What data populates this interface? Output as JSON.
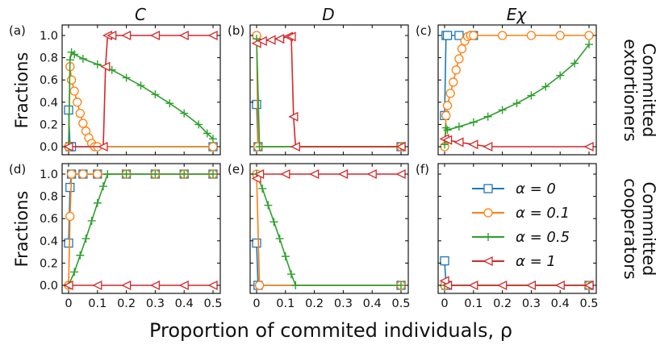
{
  "figure": {
    "xlabel": "Proportion of commited individuals, ρ",
    "ylabel": "Fractions",
    "columns": [
      "C",
      "D",
      "Eχ"
    ],
    "rows": [
      "Committed extortioners",
      "Committed cooperators"
    ],
    "row_lines": [
      [
        "Committed",
        "extortioners"
      ],
      [
        "Committed",
        "cooperators"
      ]
    ],
    "panel_labels": [
      "(a)",
      "(b)",
      "(c)",
      "(d)",
      "(e)",
      "(f)"
    ],
    "xticks": [
      "0",
      "0.1",
      "0.2",
      "0.3",
      "0.4",
      "0.5"
    ],
    "yticks": [
      "0.0",
      "0.2",
      "0.4",
      "0.6",
      "0.8",
      "1.0"
    ],
    "legend": [
      "α = 0",
      "α = 0.1",
      "α = 0.5",
      "α = 1"
    ],
    "colors": [
      "#1f77b4",
      "#ff7f0e",
      "#2ca02c",
      "#d62728"
    ],
    "markers": [
      "square",
      "circle",
      "plus",
      "triangle-left"
    ]
  },
  "chart_data": [
    {
      "type": "line",
      "panel": "(a)",
      "title": "C",
      "row": "Committed extortioners",
      "xlabel": "",
      "ylabel": "Fractions",
      "xlim": [
        0,
        0.5
      ],
      "ylim": [
        0,
        1
      ],
      "series": [
        {
          "name": "α = 0",
          "points": [
            [
              0,
              0.33
            ],
            [
              0.005,
              0.0
            ],
            [
              0.01,
              0.0
            ],
            [
              0.5,
              0.0
            ]
          ]
        },
        {
          "name": "α = 0.1",
          "points": [
            [
              0,
              0.0
            ],
            [
              0.005,
              0.72
            ],
            [
              0.01,
              0.6
            ],
            [
              0.02,
              0.5
            ],
            [
              0.03,
              0.4
            ],
            [
              0.04,
              0.3
            ],
            [
              0.05,
              0.21
            ],
            [
              0.06,
              0.14
            ],
            [
              0.07,
              0.08
            ],
            [
              0.08,
              0.03
            ],
            [
              0.09,
              0.0
            ],
            [
              0.1,
              0.0
            ],
            [
              0.5,
              0.0
            ]
          ]
        },
        {
          "name": "α = 0.5",
          "points": [
            [
              0,
              0.0
            ],
            [
              0.005,
              0.78
            ],
            [
              0.01,
              0.85
            ],
            [
              0.02,
              0.83
            ],
            [
              0.05,
              0.79
            ],
            [
              0.1,
              0.74
            ],
            [
              0.15,
              0.69
            ],
            [
              0.2,
              0.62
            ],
            [
              0.25,
              0.55
            ],
            [
              0.3,
              0.47
            ],
            [
              0.35,
              0.39
            ],
            [
              0.4,
              0.3
            ],
            [
              0.45,
              0.2
            ],
            [
              0.48,
              0.12
            ],
            [
              0.5,
              0.07
            ]
          ]
        },
        {
          "name": "α = 1",
          "points": [
            [
              0,
              0.0
            ],
            [
              0.12,
              0.0
            ],
            [
              0.128,
              0.72
            ],
            [
              0.135,
              1.0
            ],
            [
              0.15,
              1.0
            ],
            [
              0.2,
              1.0
            ],
            [
              0.3,
              1.0
            ],
            [
              0.4,
              1.0
            ],
            [
              0.5,
              1.0
            ]
          ]
        }
      ]
    },
    {
      "type": "line",
      "panel": "(b)",
      "title": "D",
      "row": "Committed extortioners",
      "xlabel": "",
      "ylabel": "",
      "xlim": [
        0,
        0.5
      ],
      "ylim": [
        0,
        1
      ],
      "series": [
        {
          "name": "α = 0",
          "points": [
            [
              0,
              0.38
            ],
            [
              0.005,
              0.0
            ],
            [
              0.5,
              0.0
            ]
          ]
        },
        {
          "name": "α = 0.1",
          "points": [
            [
              0,
              1.0
            ],
            [
              0.005,
              0.0
            ],
            [
              0.5,
              0.0
            ]
          ]
        },
        {
          "name": "α = 0.5",
          "points": [
            [
              0,
              0.97
            ],
            [
              0.01,
              0.0
            ],
            [
              0.5,
              0.0
            ]
          ]
        },
        {
          "name": "α = 1",
          "points": [
            [
              0,
              0.93
            ],
            [
              0.02,
              0.95
            ],
            [
              0.05,
              0.96
            ],
            [
              0.08,
              0.97
            ],
            [
              0.11,
              0.99
            ],
            [
              0.12,
              0.99
            ],
            [
              0.128,
              0.27
            ],
            [
              0.135,
              0.0
            ],
            [
              0.5,
              0.0
            ]
          ]
        }
      ]
    },
    {
      "type": "line",
      "panel": "(c)",
      "title": "Eχ",
      "row": "Committed extortioners",
      "xlabel": "",
      "ylabel": "",
      "xlim": [
        0,
        0.5
      ],
      "ylim": [
        0,
        1
      ],
      "series": [
        {
          "name": "α = 0",
          "points": [
            [
              0,
              0.28
            ],
            [
              0.005,
              1.0
            ],
            [
              0.01,
              1.0
            ],
            [
              0.05,
              1.0
            ],
            [
              0.1,
              1.0
            ]
          ]
        },
        {
          "name": "α = 0.1",
          "points": [
            [
              0,
              0.0
            ],
            [
              0.005,
              0.28
            ],
            [
              0.01,
              0.37
            ],
            [
              0.02,
              0.48
            ],
            [
              0.03,
              0.58
            ],
            [
              0.04,
              0.69
            ],
            [
              0.05,
              0.79
            ],
            [
              0.06,
              0.88
            ],
            [
              0.07,
              0.95
            ],
            [
              0.08,
              0.99
            ],
            [
              0.09,
              1.0
            ],
            [
              0.1,
              1.0
            ],
            [
              0.2,
              1.0
            ],
            [
              0.3,
              1.0
            ],
            [
              0.4,
              1.0
            ],
            [
              0.5,
              1.0
            ]
          ]
        },
        {
          "name": "α = 0.5",
          "points": [
            [
              0,
              0.02
            ],
            [
              0.005,
              0.17
            ],
            [
              0.01,
              0.15
            ],
            [
              0.05,
              0.18
            ],
            [
              0.1,
              0.22
            ],
            [
              0.15,
              0.27
            ],
            [
              0.2,
              0.33
            ],
            [
              0.25,
              0.39
            ],
            [
              0.3,
              0.46
            ],
            [
              0.35,
              0.54
            ],
            [
              0.4,
              0.64
            ],
            [
              0.45,
              0.75
            ],
            [
              0.5,
              0.92
            ]
          ]
        },
        {
          "name": "α = 1",
          "points": [
            [
              0,
              0.07
            ],
            [
              0.01,
              0.06
            ],
            [
              0.05,
              0.04
            ],
            [
              0.1,
              0.02
            ],
            [
              0.15,
              0.0
            ],
            [
              0.5,
              0.0
            ]
          ]
        }
      ]
    },
    {
      "type": "line",
      "panel": "(d)",
      "title": "",
      "row": "Committed cooperators",
      "xlabel": "Proportion of commited individuals, ρ",
      "ylabel": "Fractions",
      "xlim": [
        0,
        0.5
      ],
      "ylim": [
        0,
        1
      ],
      "series": [
        {
          "name": "α = 0",
          "points": [
            [
              0,
              0.38
            ],
            [
              0.005,
              0.88
            ],
            [
              0.01,
              1.0
            ],
            [
              0.05,
              1.0
            ],
            [
              0.1,
              1.0
            ],
            [
              0.2,
              1.0
            ],
            [
              0.3,
              1.0
            ],
            [
              0.4,
              1.0
            ],
            [
              0.5,
              1.0
            ]
          ]
        },
        {
          "name": "α = 0.1",
          "points": [
            [
              0,
              0.0
            ],
            [
              0.005,
              0.62
            ],
            [
              0.01,
              1.0
            ],
            [
              0.05,
              1.0
            ],
            [
              0.1,
              1.0
            ],
            [
              0.2,
              1.0
            ],
            [
              0.3,
              1.0
            ],
            [
              0.4,
              1.0
            ],
            [
              0.5,
              1.0
            ]
          ]
        },
        {
          "name": "α = 0.5",
          "points": [
            [
              0,
              0.0
            ],
            [
              0.02,
              0.12
            ],
            [
              0.04,
              0.27
            ],
            [
              0.06,
              0.42
            ],
            [
              0.08,
              0.58
            ],
            [
              0.1,
              0.74
            ],
            [
              0.12,
              0.89
            ],
            [
              0.135,
              1.0
            ],
            [
              0.2,
              1.0
            ],
            [
              0.3,
              1.0
            ],
            [
              0.4,
              1.0
            ],
            [
              0.5,
              1.0
            ]
          ]
        },
        {
          "name": "α = 1",
          "points": [
            [
              0,
              0.0
            ],
            [
              0.1,
              0.0
            ],
            [
              0.2,
              0.0
            ],
            [
              0.3,
              0.0
            ],
            [
              0.4,
              0.0
            ],
            [
              0.5,
              0.0
            ]
          ]
        }
      ]
    },
    {
      "type": "line",
      "panel": "(e)",
      "title": "",
      "row": "Committed cooperators",
      "xlabel": "",
      "ylabel": "",
      "xlim": [
        0,
        0.5
      ],
      "ylim": [
        0,
        1
      ],
      "series": [
        {
          "name": "α = 0",
          "points": [
            [
              0,
              0.38
            ],
            [
              0.005,
              0.0
            ],
            [
              0.5,
              0.0
            ]
          ]
        },
        {
          "name": "α = 0.1",
          "points": [
            [
              0,
              1.0
            ],
            [
              0.01,
              0.0
            ],
            [
              0.5,
              0.0
            ]
          ]
        },
        {
          "name": "α = 0.5",
          "points": [
            [
              0,
              1.0
            ],
            [
              0.02,
              0.87
            ],
            [
              0.04,
              0.72
            ],
            [
              0.06,
              0.57
            ],
            [
              0.08,
              0.42
            ],
            [
              0.1,
              0.26
            ],
            [
              0.12,
              0.1
            ],
            [
              0.135,
              0.0
            ],
            [
              0.5,
              0.0
            ]
          ]
        },
        {
          "name": "α = 1",
          "points": [
            [
              0,
              0.96
            ],
            [
              0.01,
              1.0
            ],
            [
              0.1,
              1.0
            ],
            [
              0.2,
              1.0
            ],
            [
              0.3,
              1.0
            ],
            [
              0.4,
              1.0
            ],
            [
              0.5,
              1.0
            ]
          ]
        }
      ]
    },
    {
      "type": "line",
      "panel": "(f)",
      "title": "",
      "row": "Committed cooperators",
      "xlabel": "",
      "ylabel": "",
      "xlim": [
        0,
        0.5
      ],
      "ylim": [
        0,
        1
      ],
      "series": [
        {
          "name": "α = 0",
          "points": [
            [
              0,
              0.22
            ],
            [
              0.005,
              0.0
            ],
            [
              0.5,
              0.0
            ]
          ]
        },
        {
          "name": "α = 0.1",
          "points": [
            [
              0,
              0.0
            ],
            [
              0.5,
              0.0
            ]
          ]
        },
        {
          "name": "α = 0.5",
          "points": [
            [
              0,
              0.0
            ],
            [
              0.5,
              0.0
            ]
          ]
        },
        {
          "name": "α = 1",
          "points": [
            [
              0,
              0.04
            ],
            [
              0.01,
              0.0
            ],
            [
              0.1,
              0.0
            ],
            [
              0.2,
              0.0
            ],
            [
              0.3,
              0.0
            ],
            [
              0.4,
              0.0
            ],
            [
              0.5,
              0.0
            ]
          ]
        }
      ]
    }
  ]
}
